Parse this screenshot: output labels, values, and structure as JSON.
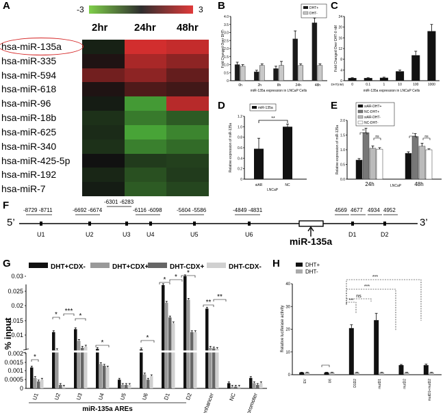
{
  "panels": {
    "A": "A",
    "B": "B",
    "C": "C",
    "D": "D",
    "E": "E",
    "F": "F",
    "G": "G",
    "H": "H"
  },
  "heatmap": {
    "scale_min": "-3",
    "scale_max": "3",
    "columns": [
      "2hr",
      "24hr",
      "48hr"
    ],
    "rows": [
      "hsa-miR-135a",
      "hsa-miR-335",
      "hsa-miR-594",
      "hsa-miR-618",
      "hsa-miR-96",
      "hsa-miR-18b",
      "hsa-miR-625",
      "hsa-miR-340",
      "hsa-miR-425-5p",
      "hsa-miR-192",
      "hsa-miR-7"
    ],
    "values": [
      [
        -0.3,
        2.8,
        2.6
      ],
      [
        0.2,
        2.2,
        1.8
      ],
      [
        1.4,
        1.8,
        1.2
      ],
      [
        0.2,
        0.9,
        0.7
      ],
      [
        -0.2,
        -2.6,
        2.4
      ],
      [
        -0.6,
        -2.0,
        -1.4
      ],
      [
        -0.5,
        -2.8,
        -2.2
      ],
      [
        -0.6,
        -2.1,
        -1.7
      ],
      [
        0.0,
        -0.8,
        -0.9
      ],
      [
        -0.4,
        -1.2,
        -0.8
      ],
      [
        -0.2,
        -1.4,
        -1.0
      ]
    ],
    "colors": {
      "low": "#4caf3a",
      "mid": "#111111",
      "high": "#e03030"
    }
  },
  "chart_data": [
    {
      "panel": "B",
      "type": "bar",
      "categories": [
        "0h",
        "2h",
        "8h",
        "24h",
        "48h"
      ],
      "series": [
        {
          "name": "DHT+",
          "values": [
            1.0,
            0.55,
            0.75,
            2.6,
            3.6
          ]
        },
        {
          "name": "DHT-",
          "values": [
            0.9,
            0.95,
            0.95,
            0.95,
            0.95
          ]
        }
      ],
      "errors": [
        [
          0.15,
          0.1,
          0.15,
          0.5,
          0.3
        ],
        [
          0.1,
          0.1,
          0.25,
          0.1,
          0.1
        ]
      ],
      "ylabel": "Fold Changed Over DHT-",
      "xlabel": "miR-135a expression in LNCaP Cells",
      "ylim": [
        0,
        4
      ],
      "yticks": [
        "0",
        "0.5",
        "1.0",
        "1.5",
        "2.0",
        "2.5",
        "3.0",
        "3.5",
        "4.0"
      ]
    },
    {
      "panel": "C",
      "type": "bar",
      "categories": [
        "0",
        "0.1",
        "1",
        "10",
        "100",
        "1000"
      ],
      "series": [
        {
          "name": "DHT(nM)",
          "values": [
            1.0,
            1.0,
            1.1,
            3.5,
            9.5,
            18.5
          ]
        }
      ],
      "errors": [
        [
          0.1,
          0.1,
          0.2,
          0.5,
          1.5,
          2.5
        ]
      ],
      "ylabel": "Fold Changed Over DHT-0 nM",
      "xlabel": "miR-135a expression in LNCaP Cells",
      "xprefix": "DHT(nM)",
      "ylim": [
        0,
        24
      ],
      "yticks": [
        "0",
        "4",
        "8",
        "12",
        "16",
        "20",
        "24"
      ]
    },
    {
      "panel": "D",
      "type": "bar",
      "categories": [
        "siAR",
        "NC"
      ],
      "series": [
        {
          "name": "miR-135a",
          "values": [
            0.58,
            1.0
          ]
        }
      ],
      "errors": [
        [
          0.2,
          0.05
        ]
      ],
      "ylabel": "Relative expression of miR-135a",
      "xlabel": "LNCaP",
      "ylim": [
        0,
        1.2
      ],
      "yticks": [
        "0",
        "0.2",
        "0.4",
        "0.6",
        "0.8",
        "1.0",
        "1.2"
      ],
      "annotation": "**"
    },
    {
      "panel": "E",
      "type": "bar",
      "categories": [
        "24h",
        "48h"
      ],
      "series": [
        {
          "name": "siAR-DHT+",
          "values": [
            0.65,
            0.88
          ]
        },
        {
          "name": "NC-DHT+",
          "values": [
            1.58,
            1.45
          ]
        },
        {
          "name": "siAR-DHT-",
          "values": [
            1.05,
            1.12
          ]
        },
        {
          "name": "NC-DHT-",
          "values": [
            1.02,
            1.0
          ]
        }
      ],
      "errors": [
        [
          0.05,
          0.05
        ],
        [
          0.15,
          0.1
        ],
        [
          0.08,
          0.1
        ],
        [
          0.05,
          0.03
        ]
      ],
      "ylabel": "Relative expression of miR-135a",
      "xlabel": "LNCaP",
      "ylim": [
        0,
        2.0
      ],
      "yticks": [
        "0.0",
        "0.5",
        "1.0",
        "1.5",
        "2.0"
      ],
      "annotations": [
        "**",
        "ns",
        "*",
        "ns"
      ]
    },
    {
      "panel": "G",
      "type": "bar",
      "categories": [
        "U1",
        "U2",
        "U3",
        "U4",
        "U5",
        "U6",
        "D1",
        "D2",
        "PSA enhancer",
        "NC",
        "XBP-1 promoter"
      ],
      "series": [
        {
          "name": "DHT+CDX-",
          "values": [
            0.0012,
            0.011,
            0.012,
            0.004,
            0.0005,
            0.0038,
            0.027,
            0.03,
            0.019,
            0.0003,
            0.0006
          ]
        },
        {
          "name": "DHT+CDX+",
          "values": [
            0.0006,
            0.0035,
            0.0075,
            0.0014,
            0.0002,
            0.0008,
            0.021,
            0.022,
            0.0045,
            0.0001,
            0.0003
          ]
        },
        {
          "name": "DHT-CDX+",
          "values": [
            0.0004,
            0.0002,
            0.0045,
            0.0013,
            0.0002,
            0.0005,
            0.016,
            0.011,
            0.0042,
            0.0001,
            0.0002
          ]
        },
        {
          "name": "DHT-CDX-",
          "values": [
            0.0005,
            0.0001,
            0.005,
            0.0012,
            0.0002,
            0.0007,
            0.014,
            0.011,
            0.004,
            0.0001,
            0.0003
          ]
        }
      ],
      "ylabel": "% input",
      "xlabel": "miR-135a AREs",
      "yticks_lower": [
        "0",
        "0.0005",
        "0.001",
        "0.0015",
        "0.002"
      ],
      "yticks_upper": [
        "0.01",
        "0.015",
        "0.02",
        "0.025",
        "0.03"
      ],
      "annotations": [
        "*",
        "*",
        "***",
        "*",
        "*",
        "*",
        "*",
        "*",
        "*",
        "**",
        "**"
      ]
    },
    {
      "panel": "H",
      "type": "bar",
      "categories": [
        "EV",
        "U6",
        "D1D2",
        "mutD1",
        "mutD2",
        "mutD1+mutD2"
      ],
      "series": [
        {
          "name": "DHT+",
          "values": [
            1.0,
            1.0,
            20.5,
            24.0,
            4.2,
            4.2
          ]
        },
        {
          "name": "DHT-",
          "values": [
            1.0,
            1.0,
            1.0,
            1.0,
            1.0,
            1.0
          ]
        }
      ],
      "errors": [
        [
          0.1,
          0.1,
          1.5,
          3.0,
          0.3,
          0.5
        ],
        [
          0.1,
          0.1,
          0.1,
          0.1,
          0.1,
          0.1
        ]
      ],
      "ylabel": "Relative luciferase activity",
      "ylim": [
        0,
        40
      ],
      "yticks": [
        "0",
        "10",
        "20",
        "30",
        "40"
      ],
      "annotations": [
        "***",
        "ns",
        "***",
        "***",
        "***"
      ]
    }
  ],
  "gene_map": {
    "prime5": "5’",
    "prime3": "3’",
    "positions_upper": [
      "-8729 -8711",
      "-6692 -6674",
      "-6301 -6283",
      "-6116 -6098",
      "-5604 -5586",
      "-4849 -4831",
      "4569",
      "4677",
      "4934",
      "4952"
    ],
    "sites": [
      "U1",
      "U2",
      "U3",
      "U4",
      "U5",
      "U6",
      "D1",
      "D2"
    ],
    "gene_label": "miR-135a"
  },
  "legends": {
    "B": [
      "DHT+",
      "DHT-"
    ],
    "C_unit": "DHT(nM)",
    "D": [
      "miR-135a"
    ],
    "E": [
      "siAR-DHT+",
      "NC-DHT+",
      "siAR-DHT-",
      "NC-DHT-"
    ],
    "G": [
      "DHT+CDX-",
      "DHT+CDX+",
      "DHT-CDX+",
      "DHT-CDX-"
    ],
    "H": [
      "DHT+",
      "DHT-"
    ]
  }
}
